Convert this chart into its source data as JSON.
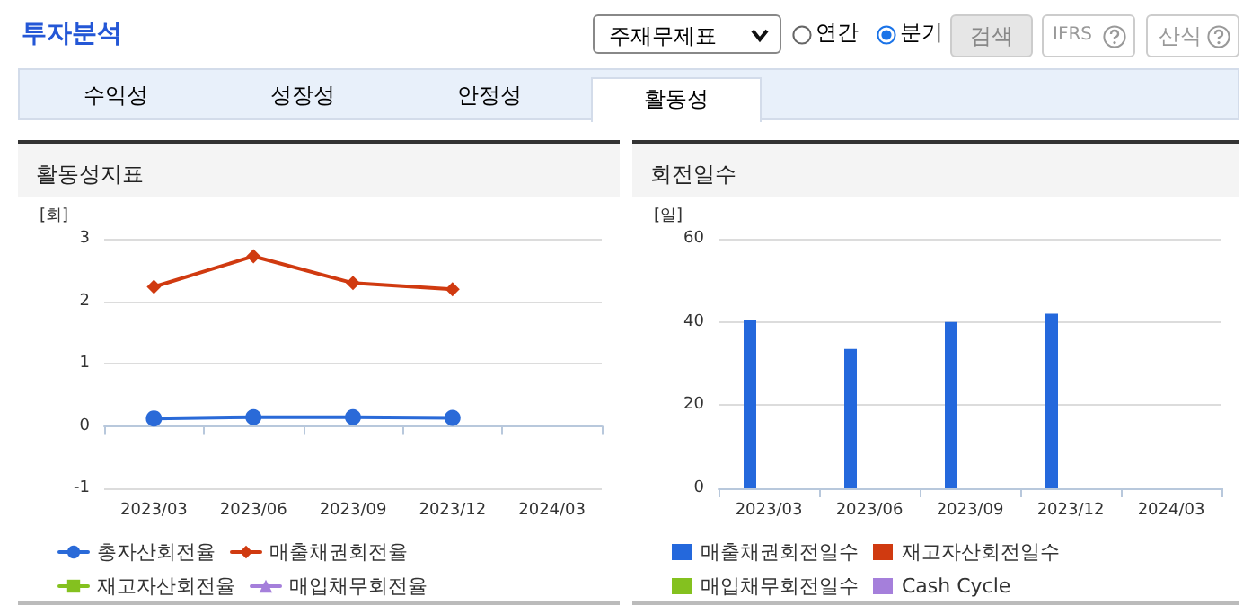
{
  "chart_data": [
    {
      "type": "other",
      "annotations": [
        "투자분석",
        "주재무제표",
        "연간",
        "분기",
        "검색",
        "IFRS",
        "산식",
        "수익성",
        "성장성",
        "안정성",
        "활동성"
      ]
    },
    {
      "type": "line",
      "title": "활동성지표",
      "ylabel": "[회]",
      "categories": [
        "2023/03",
        "2023/06",
        "2023/09",
        "2023/12",
        "2024/03"
      ],
      "series": [
        {
          "name": "총자산회전율",
          "color": "#2a6ad8",
          "marker": "circle",
          "values": [
            0.12,
            0.14,
            0.14,
            0.13,
            null
          ]
        },
        {
          "name": "매출채권회전율",
          "color": "#d03a10",
          "marker": "diamond",
          "values": [
            2.23,
            2.72,
            2.29,
            2.19,
            null
          ]
        },
        {
          "name": "재고자산회전율",
          "color": "#84c11f",
          "marker": "square",
          "values": [
            null,
            null,
            null,
            null,
            null
          ]
        },
        {
          "name": "매입채무회전율",
          "color": "#a57fdb",
          "marker": "triangle",
          "values": [
            null,
            null,
            null,
            null,
            null
          ]
        }
      ],
      "ylim": [
        -1,
        3
      ],
      "yticks": [
        -1,
        0,
        1,
        2,
        3
      ],
      "grid": "y",
      "legend": "bottom",
      "line_style": "solid"
    },
    {
      "type": "bar",
      "title": "회전일수",
      "ylabel": "[일]",
      "categories": [
        "2023/03",
        "2023/06",
        "2023/09",
        "2023/12",
        "2024/03"
      ],
      "series": [
        {
          "name": "매출채권회전일수",
          "color": "#2468dc",
          "values": [
            40.5,
            33.5,
            40,
            42,
            null
          ]
        },
        {
          "name": "재고자산회전일수",
          "color": "#d03a10",
          "values": [
            null,
            null,
            null,
            null,
            null
          ]
        },
        {
          "name": "매입채무회전일수",
          "color": "#84c11f",
          "values": [
            null,
            null,
            null,
            null,
            null
          ]
        },
        {
          "name": "Cash Cycle",
          "color": "#a57fdb",
          "values": [
            null,
            null,
            null,
            null,
            null
          ]
        }
      ],
      "ylim": [
        0,
        60
      ],
      "yticks": [
        0,
        20,
        40,
        60
      ],
      "grid": "y",
      "legend": "bottom"
    }
  ]
}
